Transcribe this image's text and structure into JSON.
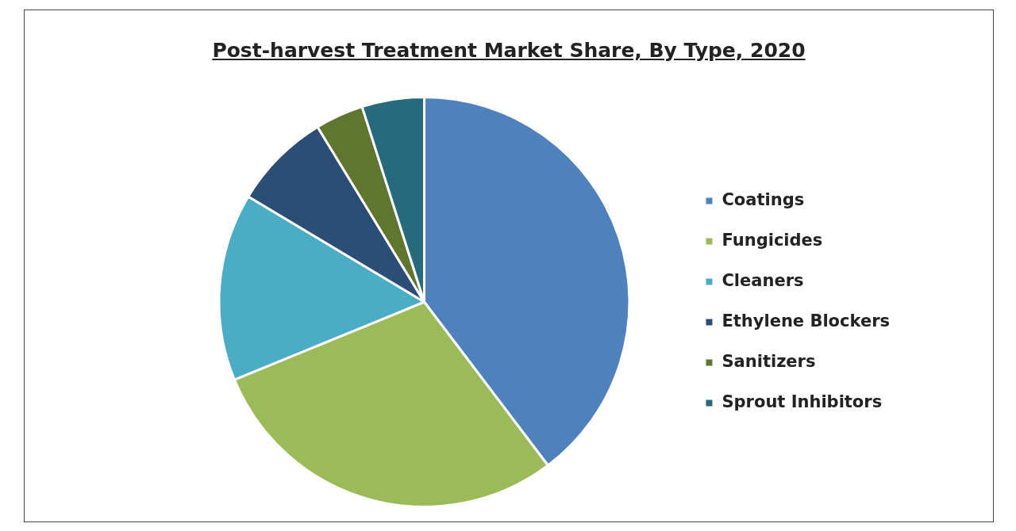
{
  "chart_data": {
    "type": "pie",
    "title": "Post-harvest Treatment Market Share, By Type, 2020",
    "categories": [
      "Coatings",
      "Fungicides",
      "Cleaners",
      "Ethylene Blockers",
      "Sanitizers",
      "Sprout Inhibitors"
    ],
    "values": [
      39.7,
      29.1,
      14.8,
      7.7,
      3.8,
      4.9
    ],
    "colors": [
      "#4f81bd",
      "#9bbb59",
      "#4bacc6",
      "#2c4d75",
      "#5f7530",
      "#276a7c"
    ],
    "legend": "right"
  }
}
